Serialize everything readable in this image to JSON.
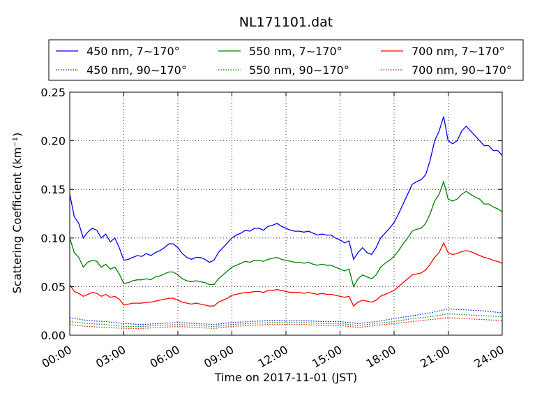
{
  "chart_data": {
    "type": "line",
    "title": "NL171101.dat",
    "xlabel": "Time on 2017-11-01 (JST)",
    "ylabel": "Scattering Coefficient (km⁻¹)",
    "x_unit": "hours",
    "xlim": [
      0,
      24
    ],
    "ylim": [
      0,
      0.25
    ],
    "x_ticks": [
      0,
      3,
      6,
      9,
      12,
      15,
      18,
      21,
      24
    ],
    "x_tick_labels": [
      "00:00",
      "03:00",
      "06:00",
      "09:00",
      "12:00",
      "15:00",
      "18:00",
      "21:00",
      "24:00"
    ],
    "y_ticks": [
      0,
      0.05,
      0.1,
      0.15,
      0.2,
      0.25
    ],
    "y_tick_labels": [
      "0.00",
      "0.05",
      "0.10",
      "0.15",
      "0.20",
      "0.25"
    ],
    "grid": true,
    "legend_position": "top",
    "series": [
      {
        "name": "450 nm, 7∼170°",
        "color": "#0000ff",
        "linestyle": "solid",
        "x": [
          0,
          0.25,
          0.5,
          0.75,
          1,
          1.25,
          1.5,
          1.75,
          2,
          2.25,
          2.5,
          2.75,
          3,
          3.25,
          3.5,
          3.75,
          4,
          4.25,
          4.5,
          4.75,
          5,
          5.25,
          5.5,
          5.75,
          6,
          6.25,
          6.5,
          6.75,
          7,
          7.25,
          7.5,
          7.75,
          8,
          8.25,
          8.5,
          8.75,
          9,
          9.25,
          9.5,
          9.75,
          10,
          10.25,
          10.5,
          10.75,
          11,
          11.25,
          11.5,
          11.75,
          12,
          12.25,
          12.5,
          12.75,
          13,
          13.25,
          13.5,
          13.75,
          14,
          14.25,
          14.5,
          14.75,
          15,
          15.25,
          15.5,
          15.75,
          16,
          16.25,
          16.5,
          16.75,
          17,
          17.25,
          17.5,
          17.75,
          18,
          18.25,
          18.5,
          18.75,
          19,
          19.25,
          19.5,
          19.75,
          20,
          20.25,
          20.5,
          20.75,
          21,
          21.25,
          21.5,
          21.75,
          22,
          22.25,
          22.5,
          22.75,
          23,
          23.25,
          23.5,
          23.75,
          24
        ],
        "values": [
          0.145,
          0.122,
          0.115,
          0.1,
          0.106,
          0.11,
          0.108,
          0.1,
          0.104,
          0.096,
          0.1,
          0.09,
          0.077,
          0.078,
          0.08,
          0.082,
          0.081,
          0.084,
          0.082,
          0.085,
          0.087,
          0.09,
          0.094,
          0.094,
          0.09,
          0.084,
          0.08,
          0.078,
          0.08,
          0.08,
          0.078,
          0.075,
          0.077,
          0.085,
          0.09,
          0.095,
          0.1,
          0.103,
          0.105,
          0.108,
          0.107,
          0.11,
          0.11,
          0.108,
          0.112,
          0.113,
          0.115,
          0.112,
          0.11,
          0.108,
          0.107,
          0.107,
          0.106,
          0.107,
          0.105,
          0.103,
          0.104,
          0.103,
          0.103,
          0.1,
          0.098,
          0.095,
          0.097,
          0.078,
          0.085,
          0.09,
          0.085,
          0.083,
          0.09,
          0.1,
          0.105,
          0.11,
          0.116,
          0.125,
          0.135,
          0.145,
          0.155,
          0.158,
          0.16,
          0.165,
          0.18,
          0.2,
          0.21,
          0.225,
          0.2,
          0.197,
          0.2,
          0.21,
          0.215,
          0.21,
          0.205,
          0.2,
          0.195,
          0.195,
          0.19,
          0.19,
          0.185
        ]
      },
      {
        "name": "550 nm, 7∼170°",
        "color": "#008000",
        "linestyle": "solid",
        "x": [
          0,
          0.25,
          0.5,
          0.75,
          1,
          1.25,
          1.5,
          1.75,
          2,
          2.25,
          2.5,
          2.75,
          3,
          3.25,
          3.5,
          3.75,
          4,
          4.25,
          4.5,
          4.75,
          5,
          5.25,
          5.5,
          5.75,
          6,
          6.25,
          6.5,
          6.75,
          7,
          7.25,
          7.5,
          7.75,
          8,
          8.25,
          8.5,
          8.75,
          9,
          9.25,
          9.5,
          9.75,
          10,
          10.25,
          10.5,
          10.75,
          11,
          11.25,
          11.5,
          11.75,
          12,
          12.25,
          12.5,
          12.75,
          13,
          13.25,
          13.5,
          13.75,
          14,
          14.25,
          14.5,
          14.75,
          15,
          15.25,
          15.5,
          15.75,
          16,
          16.25,
          16.5,
          16.75,
          17,
          17.25,
          17.5,
          17.75,
          18,
          18.25,
          18.5,
          18.75,
          19,
          19.25,
          19.5,
          19.75,
          20,
          20.25,
          20.5,
          20.75,
          21,
          21.25,
          21.5,
          21.75,
          22,
          22.25,
          22.5,
          22.75,
          23,
          23.25,
          23.5,
          23.75,
          24
        ],
        "values": [
          0.1,
          0.085,
          0.08,
          0.07,
          0.075,
          0.077,
          0.076,
          0.07,
          0.073,
          0.068,
          0.07,
          0.063,
          0.053,
          0.054,
          0.056,
          0.057,
          0.057,
          0.058,
          0.057,
          0.06,
          0.061,
          0.063,
          0.065,
          0.065,
          0.062,
          0.058,
          0.056,
          0.055,
          0.056,
          0.055,
          0.054,
          0.052,
          0.052,
          0.058,
          0.062,
          0.066,
          0.07,
          0.072,
          0.074,
          0.076,
          0.075,
          0.077,
          0.077,
          0.076,
          0.078,
          0.079,
          0.08,
          0.078,
          0.077,
          0.076,
          0.075,
          0.075,
          0.074,
          0.075,
          0.073,
          0.072,
          0.073,
          0.072,
          0.072,
          0.07,
          0.068,
          0.066,
          0.068,
          0.05,
          0.058,
          0.062,
          0.06,
          0.058,
          0.062,
          0.07,
          0.074,
          0.077,
          0.081,
          0.087,
          0.094,
          0.1,
          0.107,
          0.109,
          0.11,
          0.115,
          0.125,
          0.138,
          0.145,
          0.158,
          0.14,
          0.138,
          0.14,
          0.145,
          0.148,
          0.145,
          0.142,
          0.14,
          0.135,
          0.135,
          0.132,
          0.13,
          0.127
        ]
      },
      {
        "name": "700 nm, 7∼170°",
        "color": "#ff0000",
        "linestyle": "solid",
        "x": [
          0,
          0.25,
          0.5,
          0.75,
          1,
          1.25,
          1.5,
          1.75,
          2,
          2.25,
          2.5,
          2.75,
          3,
          3.25,
          3.5,
          3.75,
          4,
          4.25,
          4.5,
          4.75,
          5,
          5.25,
          5.5,
          5.75,
          6,
          6.25,
          6.5,
          6.75,
          7,
          7.25,
          7.5,
          7.75,
          8,
          8.25,
          8.5,
          8.75,
          9,
          9.25,
          9.5,
          9.75,
          10,
          10.25,
          10.5,
          10.75,
          11,
          11.25,
          11.5,
          11.75,
          12,
          12.25,
          12.5,
          12.75,
          13,
          13.25,
          13.5,
          13.75,
          14,
          14.25,
          14.5,
          14.75,
          15,
          15.25,
          15.5,
          15.75,
          16,
          16.25,
          16.5,
          16.75,
          17,
          17.25,
          17.5,
          17.75,
          18,
          18.25,
          18.5,
          18.75,
          19,
          19.25,
          19.5,
          19.75,
          20,
          20.25,
          20.5,
          20.75,
          21,
          21.25,
          21.5,
          21.75,
          22,
          22.25,
          22.5,
          22.75,
          23,
          23.25,
          23.5,
          23.75,
          24
        ],
        "values": [
          0.052,
          0.045,
          0.043,
          0.04,
          0.042,
          0.044,
          0.043,
          0.04,
          0.042,
          0.039,
          0.04,
          0.037,
          0.031,
          0.032,
          0.033,
          0.033,
          0.033,
          0.034,
          0.034,
          0.035,
          0.036,
          0.037,
          0.038,
          0.038,
          0.036,
          0.034,
          0.033,
          0.032,
          0.033,
          0.032,
          0.031,
          0.03,
          0.03,
          0.034,
          0.036,
          0.038,
          0.041,
          0.042,
          0.043,
          0.044,
          0.044,
          0.045,
          0.045,
          0.044,
          0.046,
          0.046,
          0.047,
          0.046,
          0.045,
          0.044,
          0.044,
          0.044,
          0.043,
          0.044,
          0.043,
          0.042,
          0.043,
          0.042,
          0.042,
          0.041,
          0.04,
          0.039,
          0.04,
          0.03,
          0.034,
          0.036,
          0.035,
          0.034,
          0.036,
          0.04,
          0.042,
          0.044,
          0.046,
          0.05,
          0.054,
          0.058,
          0.062,
          0.063,
          0.064,
          0.067,
          0.073,
          0.08,
          0.085,
          0.095,
          0.085,
          0.083,
          0.084,
          0.086,
          0.087,
          0.086,
          0.084,
          0.082,
          0.08,
          0.079,
          0.077,
          0.076,
          0.074
        ]
      },
      {
        "name": "450 nm, 90∼170°",
        "color": "#0000ff",
        "linestyle": "dotted",
        "x": [
          0,
          1,
          2,
          3,
          4,
          5,
          6,
          7,
          8,
          9,
          10,
          11,
          12,
          13,
          14,
          15,
          16,
          17,
          18,
          19,
          20,
          21,
          22,
          23,
          24
        ],
        "values": [
          0.018,
          0.015,
          0.014,
          0.012,
          0.011,
          0.012,
          0.013,
          0.012,
          0.011,
          0.013,
          0.014,
          0.015,
          0.015,
          0.015,
          0.014,
          0.014,
          0.012,
          0.014,
          0.017,
          0.02,
          0.023,
          0.027,
          0.026,
          0.025,
          0.023
        ]
      },
      {
        "name": "550 nm, 90∼170°",
        "color": "#008000",
        "linestyle": "dotted",
        "x": [
          0,
          1,
          2,
          3,
          4,
          5,
          6,
          7,
          8,
          9,
          10,
          11,
          12,
          13,
          14,
          15,
          16,
          17,
          18,
          19,
          20,
          21,
          22,
          23,
          24
        ],
        "values": [
          0.014,
          0.012,
          0.011,
          0.009,
          0.009,
          0.01,
          0.011,
          0.01,
          0.009,
          0.011,
          0.012,
          0.013,
          0.013,
          0.013,
          0.012,
          0.012,
          0.01,
          0.012,
          0.014,
          0.017,
          0.019,
          0.022,
          0.021,
          0.02,
          0.019
        ]
      },
      {
        "name": "700 nm, 90∼170°",
        "color": "#ff0000",
        "linestyle": "dotted",
        "x": [
          0,
          1,
          2,
          3,
          4,
          5,
          6,
          7,
          8,
          9,
          10,
          11,
          12,
          13,
          14,
          15,
          16,
          17,
          18,
          19,
          20,
          21,
          22,
          23,
          24
        ],
        "values": [
          0.011,
          0.009,
          0.008,
          0.007,
          0.007,
          0.008,
          0.009,
          0.008,
          0.007,
          0.009,
          0.01,
          0.011,
          0.011,
          0.011,
          0.01,
          0.01,
          0.008,
          0.01,
          0.012,
          0.014,
          0.016,
          0.018,
          0.017,
          0.016,
          0.015
        ]
      }
    ]
  }
}
